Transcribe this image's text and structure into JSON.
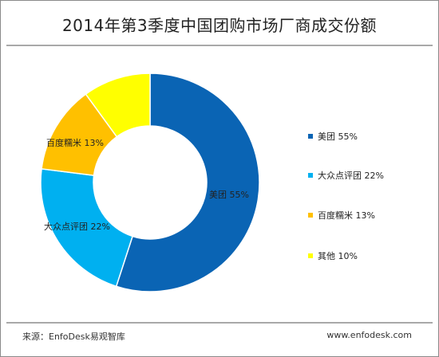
{
  "chart_data": {
    "type": "pie",
    "title": "2014年第3季度中国团购市场厂商成交份额",
    "categories": [
      "美团",
      "大众点评团",
      "百度糯米",
      "其他"
    ],
    "values": [
      55,
      22,
      13,
      10
    ],
    "slice_labels": [
      "美团 55%",
      "大众点评团 22%",
      "百度糯米 13%",
      "其他 10%"
    ],
    "colors": [
      "#0a64b4",
      "#00b0f0",
      "#ffc000",
      "#ffff00"
    ],
    "donut": true,
    "legend_position": "right",
    "legend": [
      {
        "label": "美团 55%",
        "color": "#0a64b4"
      },
      {
        "label": "大众点评团 22%",
        "color": "#00b0f0"
      },
      {
        "label": "百度糯米 13%",
        "color": "#ffc000"
      },
      {
        "label": "其他 10%",
        "color": "#ffff00"
      }
    ]
  },
  "footer": {
    "source": "来源：EnfoDesk易观智库",
    "site": "www.enfodesk.com"
  }
}
